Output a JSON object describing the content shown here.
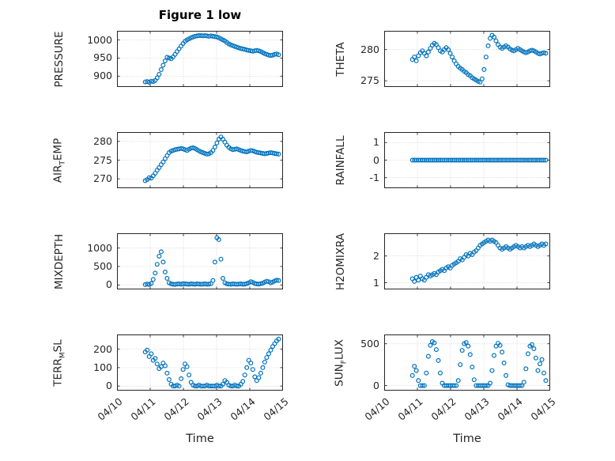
{
  "figure": {
    "title": "Figure 1 low",
    "xlabel": "Time",
    "background": "#ffffff",
    "marker_color": "#0072BD",
    "axis_color": "#262626",
    "grid_color": "#c9c9c9"
  },
  "chart_data": {
    "type": "scatter",
    "marker": "o",
    "grid": true,
    "x_axis": {
      "label": "Time",
      "lim": [
        0,
        5
      ],
      "ticks": [
        0,
        1,
        2,
        3,
        4,
        5
      ],
      "tick_labels": [
        "04/10",
        "04/11",
        "04/12",
        "04/13",
        "04/14",
        "04/15"
      ]
    },
    "x": [
      0.85,
      0.91,
      0.97,
      1.03,
      1.09,
      1.15,
      1.21,
      1.27,
      1.33,
      1.39,
      1.45,
      1.51,
      1.57,
      1.63,
      1.69,
      1.75,
      1.81,
      1.87,
      1.93,
      1.99,
      2.05,
      2.11,
      2.17,
      2.23,
      2.29,
      2.35,
      2.41,
      2.47,
      2.53,
      2.59,
      2.65,
      2.71,
      2.77,
      2.83,
      2.89,
      2.95,
      3.01,
      3.07,
      3.13,
      3.19,
      3.25,
      3.31,
      3.37,
      3.43,
      3.49,
      3.55,
      3.61,
      3.67,
      3.73,
      3.79,
      3.85,
      3.91,
      3.97,
      4.03,
      4.09,
      4.15,
      4.21,
      4.27,
      4.33,
      4.39,
      4.45,
      4.51,
      4.57,
      4.63,
      4.69,
      4.75,
      4.81,
      4.87
    ],
    "plots": [
      {
        "id": "pressure",
        "label": "PRESSURE",
        "ylabel_parts": [
          {
            "text": "PRESSURE"
          }
        ],
        "ylim": [
          870,
          1025
        ],
        "yticks": [
          900,
          950,
          1000
        ],
        "show_x_labels": false,
        "y": [
          884,
          885,
          883,
          886,
          885,
          888,
          895,
          905,
          918,
          930,
          942,
          952,
          950,
          948,
          953,
          960,
          968,
          975,
          983,
          990,
          996,
          1000,
          1003,
          1006,
          1008,
          1010,
          1011,
          1012,
          1012,
          1011,
          1012,
          1011,
          1010,
          1011,
          1010,
          1009,
          1008,
          1006,
          1003,
          1000,
          997,
          993,
          989,
          986,
          984,
          982,
          980,
          978,
          976,
          975,
          974,
          972,
          971,
          970,
          969,
          970,
          971,
          970,
          968,
          965,
          962,
          960,
          958,
          957,
          958,
          960,
          961,
          959
        ]
      },
      {
        "id": "theta",
        "label": "THETA",
        "ylabel_parts": [
          {
            "text": "THETA"
          }
        ],
        "ylim": [
          274,
          283
        ],
        "yticks": [
          275,
          280
        ],
        "show_x_labels": false,
        "y": [
          278.4,
          278.8,
          278.2,
          279.0,
          279.5,
          279.8,
          279.4,
          279.0,
          279.6,
          280.2,
          280.7,
          281.0,
          280.8,
          280.3,
          279.8,
          279.6,
          280.0,
          280.3,
          280.0,
          279.4,
          278.8,
          278.2,
          277.7,
          277.3,
          277.0,
          276.8,
          276.5,
          276.3,
          276.0,
          275.8,
          275.5,
          275.3,
          275.1,
          274.9,
          274.8,
          275.3,
          276.8,
          278.8,
          280.6,
          281.8,
          282.3,
          282.0,
          281.4,
          280.8,
          280.4,
          280.2,
          280.4,
          280.6,
          280.4,
          280.1,
          279.9,
          279.8,
          280.0,
          280.2,
          280.0,
          279.8,
          279.6,
          279.5,
          279.6,
          279.8,
          279.9,
          279.8,
          279.6,
          279.4,
          279.3,
          279.4,
          279.5,
          279.4
        ]
      },
      {
        "id": "air-temp",
        "label": "AIR_TEMP",
        "ylabel_parts": [
          {
            "text": "AIR"
          },
          {
            "sub": "T"
          },
          {
            "text": "EMP"
          }
        ],
        "ylim": [
          267.5,
          282.5
        ],
        "yticks": [
          270,
          275,
          280
        ],
        "show_x_labels": false,
        "y": [
          269.5,
          269.8,
          270.3,
          270.2,
          270.8,
          271.5,
          272.3,
          273.0,
          273.8,
          274.5,
          275.4,
          276.2,
          277.0,
          277.4,
          277.6,
          277.8,
          277.9,
          278.0,
          278.1,
          278.0,
          277.8,
          277.6,
          277.9,
          278.2,
          278.3,
          278.1,
          277.8,
          277.5,
          277.2,
          277.0,
          276.8,
          276.6,
          276.7,
          277.0,
          277.6,
          278.5,
          279.6,
          280.6,
          281.2,
          280.6,
          279.8,
          279.0,
          278.4,
          278.0,
          277.8,
          277.9,
          278.0,
          277.8,
          277.6,
          277.4,
          277.3,
          277.2,
          277.4,
          277.6,
          277.5,
          277.3,
          277.1,
          277.0,
          276.9,
          276.8,
          276.7,
          276.8,
          276.9,
          277.0,
          276.9,
          276.8,
          276.7,
          276.6
        ]
      },
      {
        "id": "rainfall",
        "label": "RAINFALL",
        "ylabel_parts": [
          {
            "text": "RAINFALL"
          }
        ],
        "ylim": [
          -1.6,
          1.6
        ],
        "yticks": [
          -1,
          0,
          1
        ],
        "show_x_labels": false,
        "y": [
          0,
          0,
          0,
          0,
          0,
          0,
          0,
          0,
          0,
          0,
          0,
          0,
          0,
          0,
          0,
          0,
          0,
          0,
          0,
          0,
          0,
          0,
          0,
          0,
          0,
          0,
          0,
          0,
          0,
          0,
          0,
          0,
          0,
          0,
          0,
          0,
          0,
          0,
          0,
          0,
          0,
          0,
          0,
          0,
          0,
          0,
          0,
          0,
          0,
          0,
          0,
          0,
          0,
          0,
          0,
          0,
          0,
          0,
          0,
          0,
          0,
          0,
          0,
          0,
          0,
          0,
          0,
          0
        ]
      },
      {
        "id": "mixdepth",
        "label": "MIXDEPTH",
        "ylabel_parts": [
          {
            "text": "MIXDEPTH"
          }
        ],
        "ylim": [
          -120,
          1400
        ],
        "yticks": [
          0,
          500,
          1000
        ],
        "show_x_labels": false,
        "y": [
          10,
          25,
          15,
          40,
          150,
          320,
          560,
          780,
          900,
          620,
          350,
          180,
          60,
          30,
          20,
          15,
          25,
          30,
          20,
          35,
          30,
          25,
          20,
          30,
          25,
          20,
          30,
          25,
          20,
          25,
          30,
          20,
          25,
          35,
          120,
          620,
          1280,
          1230,
          700,
          180,
          60,
          30,
          25,
          20,
          30,
          25,
          20,
          25,
          30,
          20,
          25,
          35,
          60,
          90,
          70,
          40,
          30,
          25,
          35,
          50,
          80,
          100,
          90,
          60,
          80,
          110,
          130,
          120
        ]
      },
      {
        "id": "h2omixra",
        "label": "H2OMIXRA",
        "ylabel_parts": [
          {
            "text": "H2OMIXRA"
          }
        ],
        "ylim": [
          0.75,
          2.85
        ],
        "yticks": [
          1,
          2
        ],
        "show_x_labels": false,
        "y": [
          1.15,
          1.05,
          1.2,
          1.1,
          1.25,
          1.15,
          1.1,
          1.2,
          1.3,
          1.25,
          1.3,
          1.35,
          1.3,
          1.4,
          1.45,
          1.5,
          1.45,
          1.55,
          1.6,
          1.55,
          1.65,
          1.7,
          1.75,
          1.8,
          1.9,
          1.85,
          1.95,
          2.05,
          2.0,
          2.1,
          2.05,
          2.15,
          2.2,
          2.3,
          2.4,
          2.45,
          2.5,
          2.55,
          2.6,
          2.55,
          2.6,
          2.55,
          2.5,
          2.4,
          2.3,
          2.25,
          2.3,
          2.35,
          2.3,
          2.25,
          2.3,
          2.35,
          2.4,
          2.35,
          2.3,
          2.35,
          2.3,
          2.35,
          2.4,
          2.35,
          2.4,
          2.45,
          2.4,
          2.35,
          2.4,
          2.45,
          2.4,
          2.45
        ]
      },
      {
        "id": "terr-msl",
        "label": "TERR_MSL",
        "ylabel_parts": [
          {
            "text": "TERR"
          },
          {
            "sub": "M"
          },
          {
            "text": "SL"
          }
        ],
        "ylim": [
          -25,
          280
        ],
        "yticks": [
          0,
          100,
          200
        ],
        "show_x_labels": true,
        "y": [
          185,
          195,
          160,
          175,
          140,
          150,
          120,
          95,
          105,
          125,
          110,
          70,
          35,
          10,
          0,
          0,
          5,
          0,
          40,
          90,
          120,
          105,
          60,
          20,
          5,
          0,
          0,
          5,
          0,
          0,
          0,
          5,
          0,
          0,
          0,
          0,
          5,
          0,
          0,
          10,
          30,
          20,
          5,
          0,
          0,
          5,
          0,
          0,
          10,
          25,
          60,
          100,
          140,
          125,
          90,
          50,
          30,
          45,
          70,
          100,
          130,
          155,
          175,
          195,
          215,
          230,
          245,
          255
        ]
      },
      {
        "id": "sun-flux",
        "label": "SUN_FLUX",
        "ylabel_parts": [
          {
            "text": "SUN"
          },
          {
            "sub": "F"
          },
          {
            "text": "LUX"
          }
        ],
        "ylim": [
          -60,
          610
        ],
        "yticks": [
          0,
          500
        ],
        "show_x_labels": true,
        "y": [
          120,
          230,
          180,
          60,
          0,
          0,
          0,
          150,
          350,
          480,
          525,
          510,
          430,
          300,
          150,
          30,
          0,
          0,
          0,
          0,
          0,
          0,
          0,
          60,
          250,
          420,
          500,
          515,
          470,
          370,
          220,
          70,
          0,
          0,
          0,
          0,
          0,
          0,
          0,
          30,
          180,
          360,
          470,
          505,
          480,
          400,
          270,
          120,
          10,
          0,
          0,
          0,
          0,
          0,
          0,
          0,
          40,
          200,
          380,
          470,
          490,
          440,
          330,
          180,
          260,
          310,
          150,
          60
        ]
      }
    ]
  }
}
